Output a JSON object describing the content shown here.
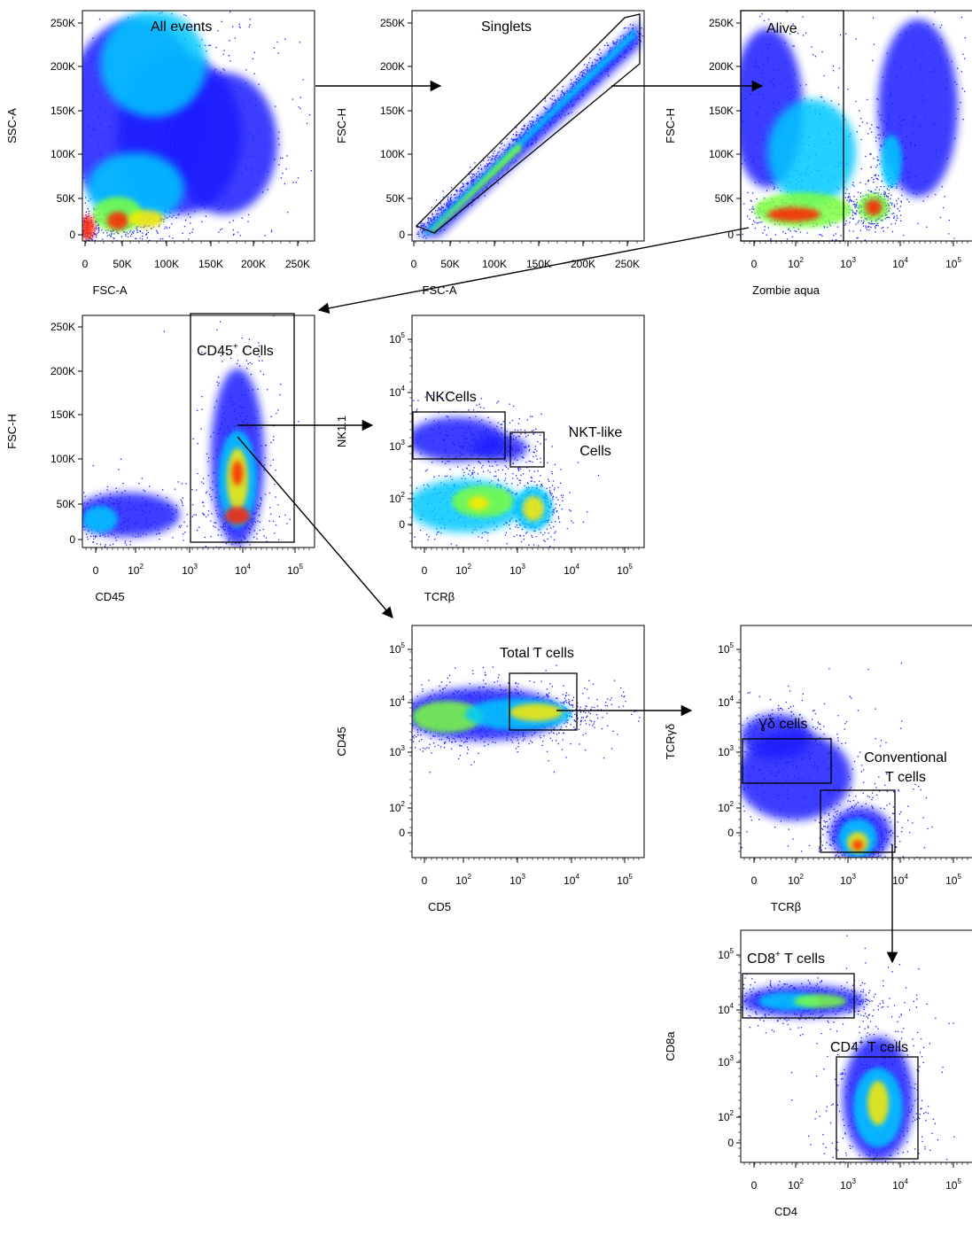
{
  "figure": {
    "colors": {
      "low": "#1a1aff",
      "mid": "#00c8ff",
      "high": "#ffea00",
      "peak": "#ff2000",
      "frame": "#000000"
    }
  },
  "chart_data": [
    {
      "id": "p1",
      "type": "scatter",
      "style": "flow-density",
      "gate_label": "All events",
      "xlabel": "FSC-A",
      "ylabel": "SSC-A",
      "x_ticks": [
        "0",
        "50K",
        "100K",
        "150K",
        "200K",
        "250K"
      ],
      "y_ticks": [
        "0",
        "50K",
        "100K",
        "150K",
        "200K",
        "250K"
      ],
      "xlim": [
        0,
        262144
      ],
      "ylim": [
        0,
        262144
      ]
    },
    {
      "id": "p2",
      "type": "scatter",
      "style": "flow-density",
      "gate_label": "Singlets",
      "xlabel": "FSC-A",
      "ylabel": "FSC-H",
      "x_ticks": [
        "0",
        "50K",
        "100K",
        "150K",
        "200K",
        "250K"
      ],
      "y_ticks": [
        "0",
        "50K",
        "100K",
        "150K",
        "200K",
        "250K"
      ],
      "xlim": [
        0,
        262144
      ],
      "ylim": [
        0,
        262144
      ]
    },
    {
      "id": "p3",
      "type": "scatter",
      "style": "flow-density",
      "gate_label": "Alive",
      "xlabel": "Zombie aqua",
      "ylabel": "FSC-H",
      "x_ticks": [
        "0",
        "10",
        "10",
        "10",
        "10"
      ],
      "x_tick_exp": [
        "",
        "2",
        "3",
        "4",
        "5"
      ],
      "y_ticks": [
        "0",
        "50K",
        "100K",
        "150K",
        "200K",
        "250K"
      ],
      "ylim": [
        0,
        262144
      ]
    },
    {
      "id": "p4",
      "type": "scatter",
      "style": "flow-density",
      "gate_label": "CD45",
      "gate_label_sup": "+",
      "gate_label_rest": " Cells",
      "xlabel": "CD45",
      "ylabel": "FSC-H",
      "x_ticks": [
        "0",
        "10",
        "10",
        "10",
        "10"
      ],
      "x_tick_exp": [
        "",
        "2",
        "3",
        "4",
        "5"
      ],
      "y_ticks": [
        "0",
        "50K",
        "100K",
        "150K",
        "200K",
        "250K"
      ],
      "ylim": [
        0,
        262144
      ]
    },
    {
      "id": "p5",
      "type": "scatter",
      "style": "flow-density",
      "gate_labels": [
        "NKCells",
        "NKT-like",
        "Cells"
      ],
      "xlabel": "TCRβ",
      "ylabel": "NK1.1",
      "x_ticks": [
        "0",
        "10",
        "10",
        "10",
        "10"
      ],
      "x_tick_exp": [
        "",
        "2",
        "3",
        "4",
        "5"
      ],
      "y_ticks": [
        "0",
        "10",
        "10",
        "10",
        "10"
      ],
      "y_tick_exp": [
        "",
        "2",
        "3",
        "4",
        "5"
      ]
    },
    {
      "id": "p6",
      "type": "scatter",
      "style": "flow-density",
      "gate_label": "Total T cells",
      "xlabel": "CD5",
      "ylabel": "CD45",
      "x_ticks": [
        "0",
        "10",
        "10",
        "10",
        "10"
      ],
      "x_tick_exp": [
        "",
        "2",
        "3",
        "4",
        "5"
      ],
      "y_ticks": [
        "0",
        "10",
        "10",
        "10",
        "10"
      ],
      "y_tick_exp": [
        "",
        "2",
        "3",
        "4",
        "5"
      ]
    },
    {
      "id": "p7",
      "type": "scatter",
      "style": "flow-density",
      "gate_labels": [
        "Ɣδ cells",
        "Conventional",
        "T cells"
      ],
      "xlabel": "TCRβ",
      "ylabel": "TCRγδ",
      "x_ticks": [
        "0",
        "10",
        "10",
        "10",
        "10"
      ],
      "x_tick_exp": [
        "",
        "2",
        "3",
        "4",
        "5"
      ],
      "y_ticks": [
        "0",
        "10",
        "10",
        "10",
        "10"
      ],
      "y_tick_exp": [
        "",
        "2",
        "3",
        "4",
        "5"
      ]
    },
    {
      "id": "p8",
      "type": "scatter",
      "style": "flow-density",
      "gate_labels": [
        "CD8",
        "+",
        " T cells",
        "CD4",
        "+",
        " T cells"
      ],
      "xlabel": "CD4",
      "ylabel": "CD8a",
      "x_ticks": [
        "0",
        "10",
        "10",
        "10",
        "10"
      ],
      "x_tick_exp": [
        "",
        "2",
        "3",
        "4",
        "5"
      ],
      "y_ticks": [
        "0",
        "10",
        "10",
        "10",
        "10"
      ],
      "y_tick_exp": [
        "",
        "2",
        "3",
        "4",
        "5"
      ]
    }
  ]
}
